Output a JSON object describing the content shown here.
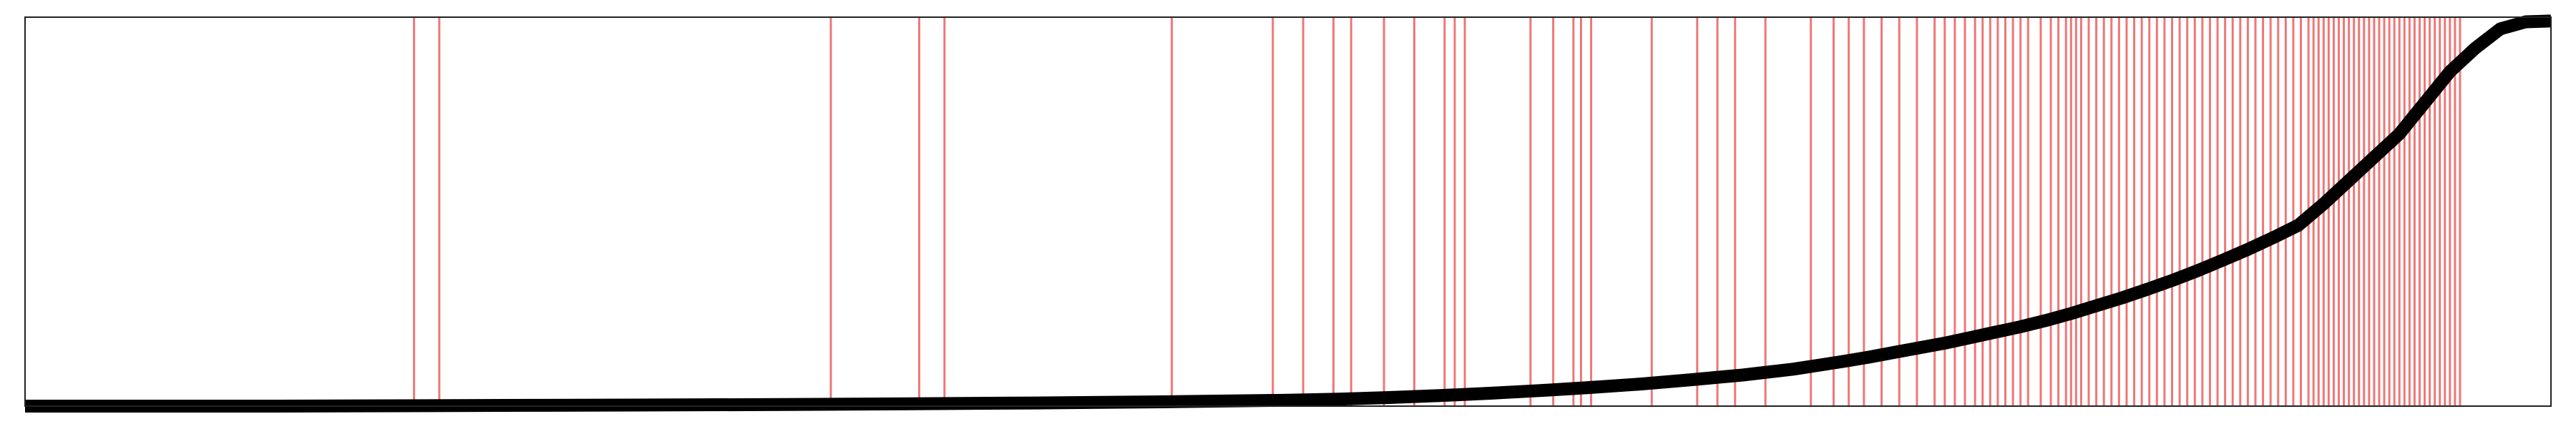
{
  "chart_data": {
    "type": "line",
    "title": "",
    "xlabel": "",
    "ylabel": "",
    "xlim": [
      0,
      1000
    ],
    "ylim": [
      0,
      1
    ],
    "grid": false,
    "legend": "none",
    "ticks_visible": false,
    "colors": {
      "curve": "#000000",
      "event_lines": "#ee7777",
      "frame": "#222222",
      "background": "#ffffff"
    },
    "series": [
      {
        "x": [
          0,
          50,
          100,
          150,
          200,
          250,
          300,
          350,
          400,
          450,
          500,
          520,
          540,
          560,
          580,
          600,
          620,
          640,
          660,
          680,
          700,
          710,
          720,
          730,
          740,
          750,
          760,
          770,
          780,
          790,
          800,
          810,
          820,
          830,
          840,
          850,
          860,
          870,
          880,
          890,
          900,
          910,
          920,
          930,
          940,
          950,
          960,
          970,
          980,
          990,
          1000
        ],
        "values": [
          0.0,
          0.0,
          0.0,
          0.001,
          0.002,
          0.003,
          0.004,
          0.006,
          0.008,
          0.011,
          0.015,
          0.018,
          0.022,
          0.027,
          0.033,
          0.04,
          0.048,
          0.057,
          0.068,
          0.08,
          0.095,
          0.105,
          0.115,
          0.126,
          0.138,
          0.15,
          0.162,
          0.176,
          0.19,
          0.204,
          0.22,
          0.238,
          0.258,
          0.278,
          0.3,
          0.323,
          0.348,
          0.375,
          0.403,
          0.433,
          0.465,
          0.52,
          0.58,
          0.64,
          0.7,
          0.78,
          0.86,
          0.92,
          0.97,
          0.988,
          0.99
        ]
      }
    ],
    "event_x": [
      154,
      164,
      319,
      354,
      364,
      454,
      494,
      506,
      518,
      525,
      538,
      550,
      562,
      566,
      570,
      596,
      605,
      613,
      616,
      620,
      644,
      662,
      670,
      677,
      689,
      707,
      716,
      722,
      728,
      735,
      742,
      749,
      756,
      760,
      764,
      768,
      772,
      775,
      778,
      781,
      784,
      787,
      790,
      793,
      798,
      802,
      805,
      808,
      810,
      812,
      814,
      817,
      820,
      823,
      826,
      829,
      832,
      835,
      838,
      841,
      844,
      847,
      850,
      853,
      856,
      859,
      862,
      865,
      868,
      871,
      874,
      877,
      880,
      883,
      886,
      889,
      892,
      895,
      898,
      901,
      904,
      906,
      908,
      910,
      912,
      914,
      916,
      918,
      920,
      922,
      924,
      926,
      928,
      930,
      932,
      934,
      936,
      938,
      940,
      942,
      944,
      946,
      948,
      950,
      952,
      954,
      956,
      958,
      960,
      962,
      964
    ]
  }
}
